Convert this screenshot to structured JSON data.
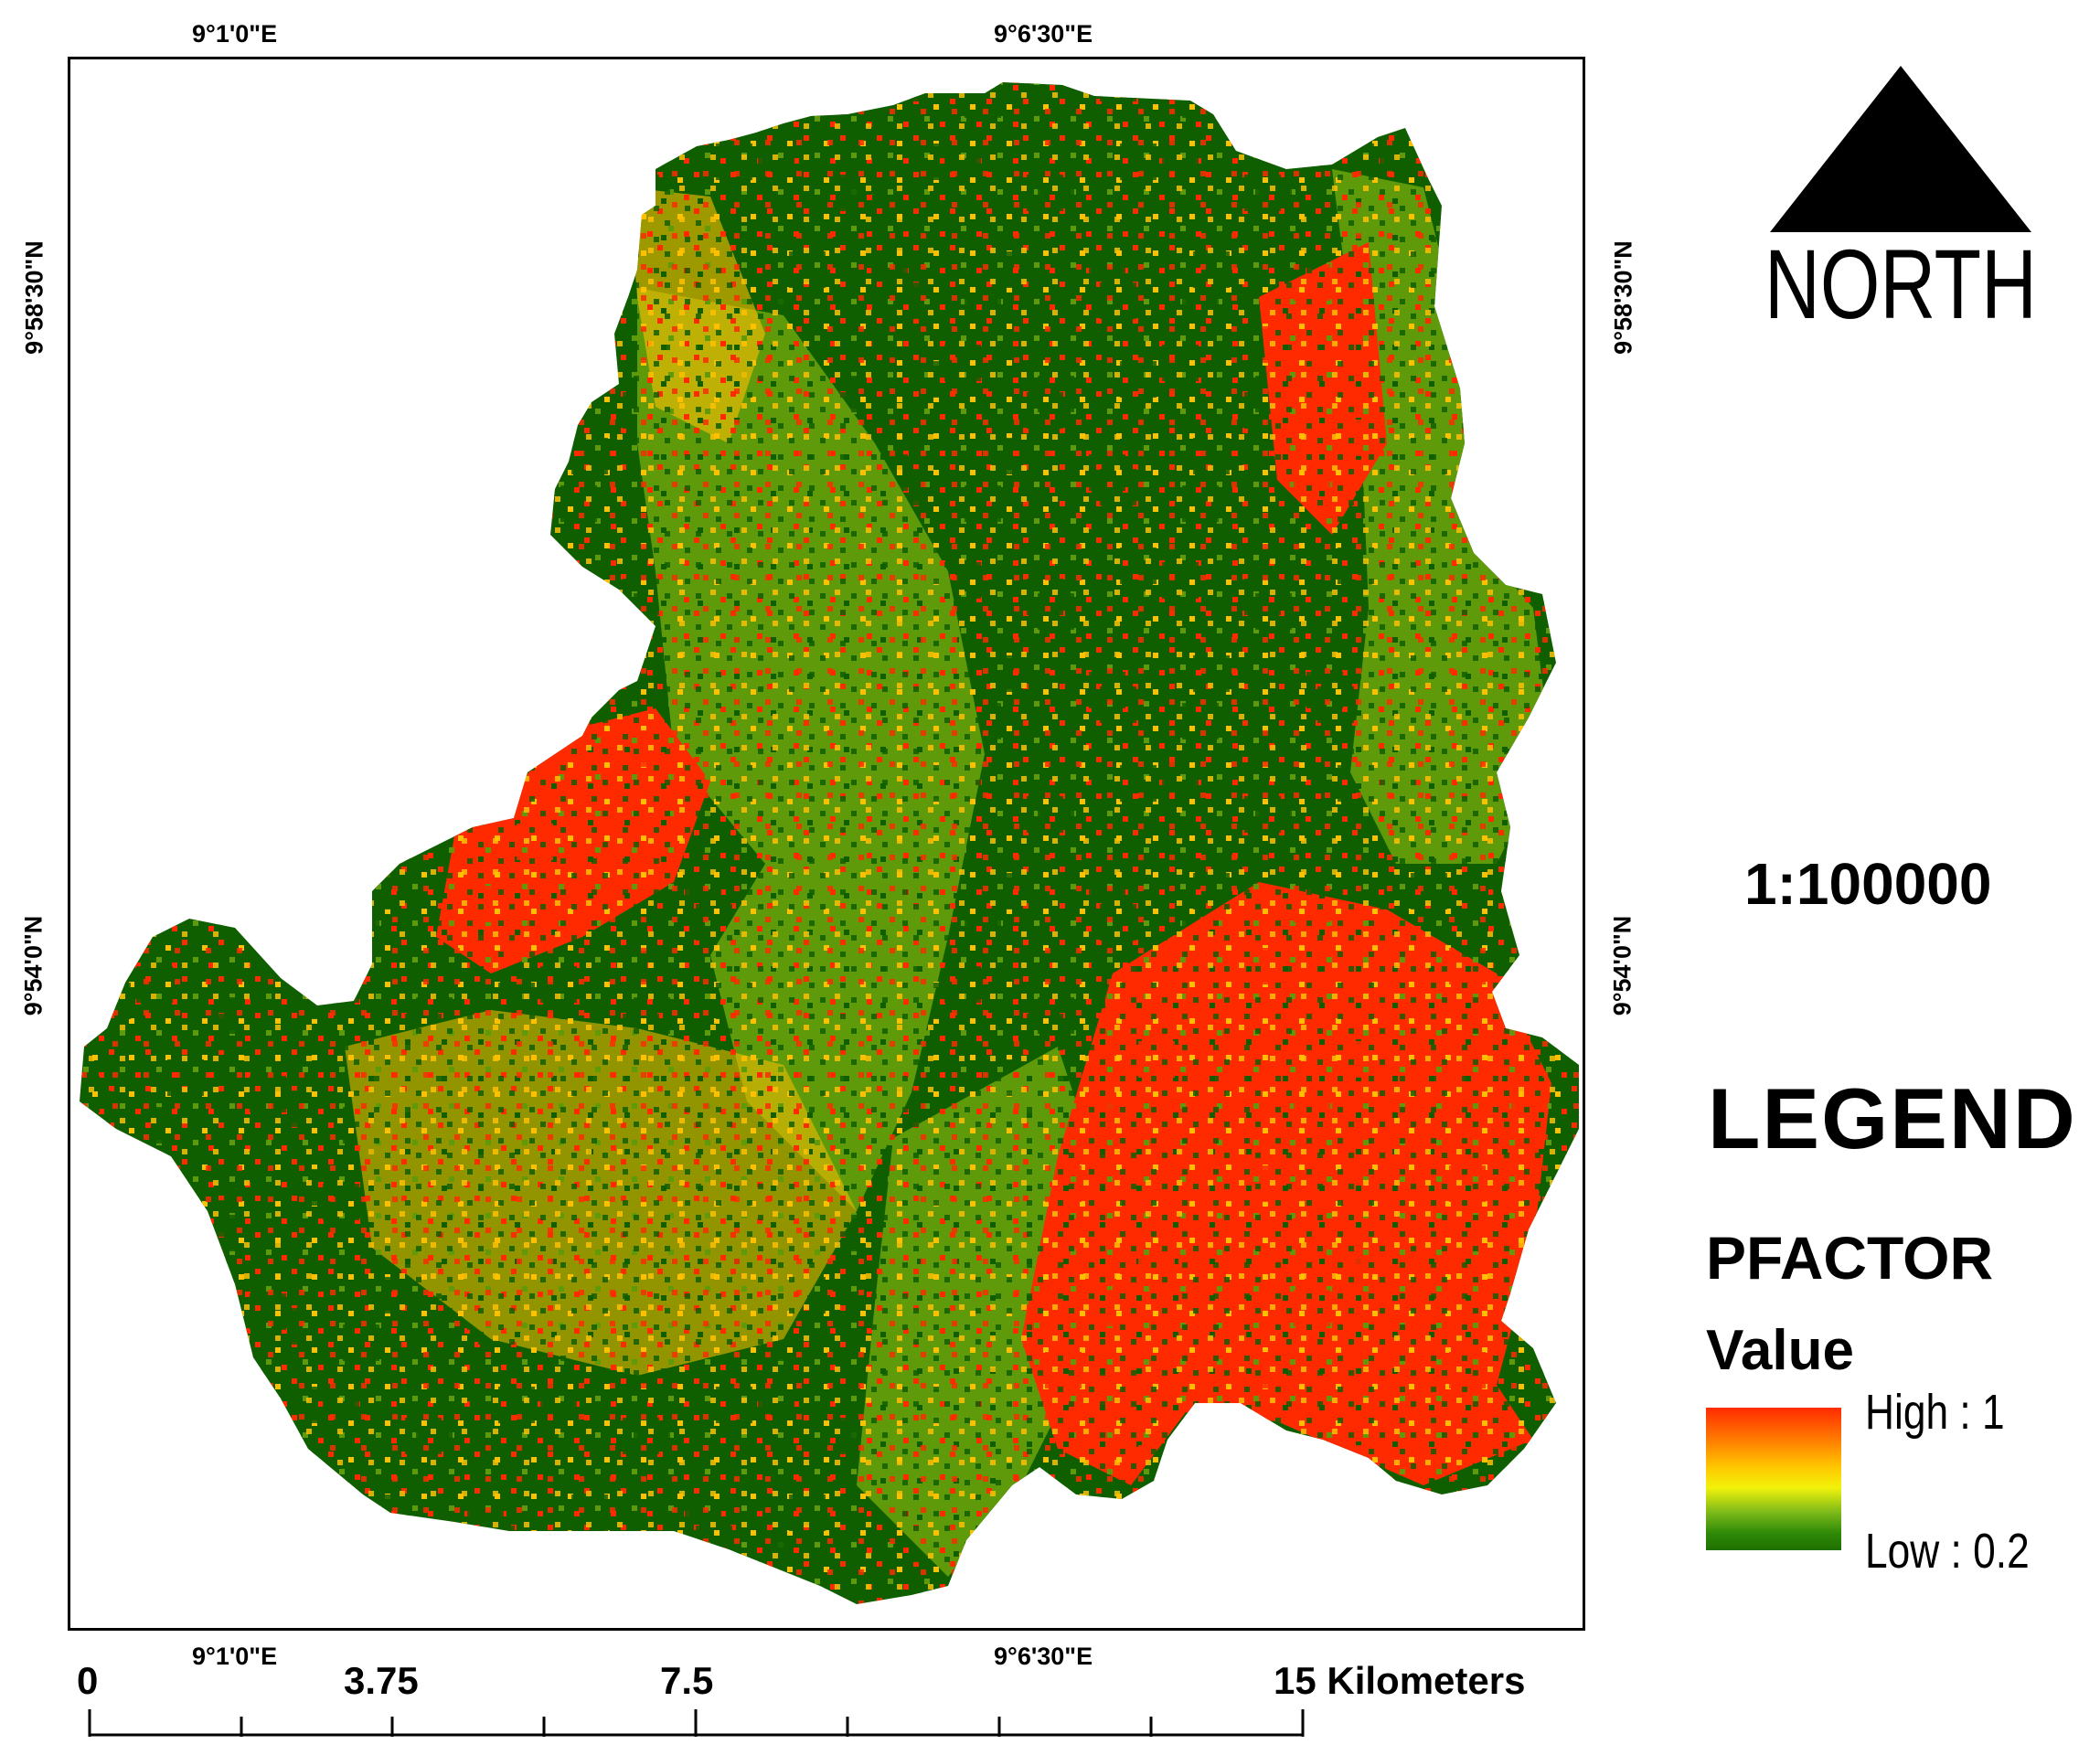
{
  "graticule": {
    "top_left_lon": "9°1'0\"E",
    "top_right_lon": "9°6'30\"E",
    "bottom_left_lon": "9°1'0\"E",
    "bottom_right_lon": "9°6'30\"E",
    "left_upper_lat": "9°58'30\"N",
    "left_lower_lat": "9°54'0\"N",
    "right_upper_lat": "9°58'30\"N",
    "right_lower_lat": "9°54'0\"N"
  },
  "north_arrow": {
    "icon": "north-arrow-icon",
    "label": "NORTH"
  },
  "scale_ratio": "1:100000",
  "scale_bar": {
    "labels": [
      "0",
      "3.75",
      "7.5",
      "15 Kilometers"
    ]
  },
  "legend": {
    "title": "LEGEND",
    "layer": "PFACTOR",
    "field": "Value",
    "high_label": "High : 1",
    "low_label": "Low : 0.2",
    "colors": {
      "high": "#ff2a00",
      "mid": "#ffc800",
      "low": "#1e6f00"
    }
  },
  "map_colors": {
    "dark_green": "#0f5f00",
    "light_green": "#5e9a0a",
    "yellow": "#ffc000",
    "red": "#ff2a00"
  }
}
